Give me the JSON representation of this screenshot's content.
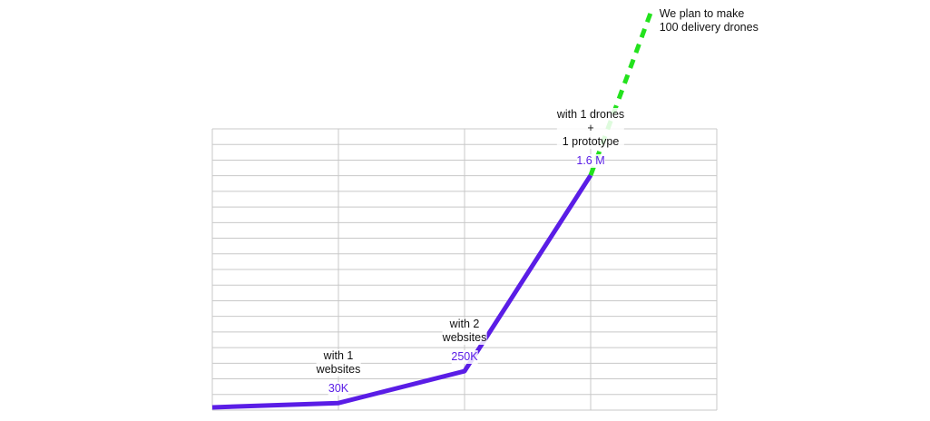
{
  "chart_data": {
    "type": "line",
    "x": [
      0,
      1,
      2,
      3,
      3.48
    ],
    "xlim": [
      0,
      4
    ],
    "ylim": [
      0,
      1920000
    ],
    "categories": [
      null,
      "with 1\nwebsites",
      "with 2\nwebsites",
      "with 1 drones\n+\n1 prototype",
      "We plan to make\n100 delivery drones"
    ],
    "series": [
      {
        "color": "#5a1de6",
        "values": [
          0,
          30000,
          250000,
          1600000,
          null
        ],
        "value_labels": [
          null,
          "30K",
          "250K",
          "1.6 M",
          null
        ]
      },
      {
        "color": "#23e21d",
        "dashed": true,
        "values": [
          null,
          null,
          null,
          1600000,
          2730000
        ]
      }
    ]
  }
}
